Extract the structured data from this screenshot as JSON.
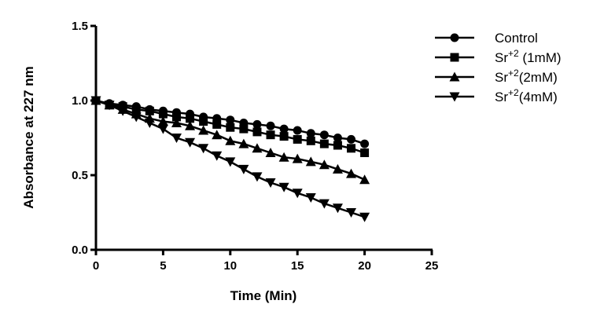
{
  "chart_data": {
    "type": "line",
    "title": "",
    "xlabel": "Time (Min)",
    "ylabel": "Absorbance at 227   nm",
    "xlim": [
      0,
      25
    ],
    "ylim": [
      0,
      1.5
    ],
    "xticks": [
      "0",
      "5",
      "10",
      "15",
      "20",
      "25"
    ],
    "yticks": [
      "0.0",
      "0.5",
      "1.0",
      "1.5"
    ],
    "grid": false,
    "legend_position": "top-right",
    "x": [
      0,
      1,
      2,
      3,
      4,
      5,
      6,
      7,
      8,
      9,
      10,
      11,
      12,
      13,
      14,
      15,
      16,
      17,
      18,
      19,
      20
    ],
    "series": [
      {
        "name": "Control",
        "base": "Control",
        "sup": "",
        "suffix": "",
        "marker": "circle",
        "values": [
          1.0,
          0.98,
          0.97,
          0.96,
          0.94,
          0.93,
          0.92,
          0.91,
          0.89,
          0.88,
          0.87,
          0.85,
          0.84,
          0.83,
          0.81,
          0.8,
          0.78,
          0.77,
          0.75,
          0.74,
          0.71
        ]
      },
      {
        "name": "Sr+2 (1mM)",
        "base": "Sr",
        "sup": "+2",
        "suffix": " (1mM)",
        "marker": "square",
        "values": [
          1.0,
          0.97,
          0.96,
          0.94,
          0.93,
          0.91,
          0.89,
          0.88,
          0.86,
          0.84,
          0.82,
          0.81,
          0.79,
          0.77,
          0.76,
          0.74,
          0.73,
          0.71,
          0.7,
          0.68,
          0.65
        ]
      },
      {
        "name": "Sr+2(2mM)",
        "base": "Sr",
        "sup": "+2",
        "suffix": "(2mM)",
        "marker": "triangle-up",
        "values": [
          1.0,
          0.97,
          0.94,
          0.91,
          0.88,
          0.86,
          0.85,
          0.83,
          0.8,
          0.77,
          0.73,
          0.71,
          0.68,
          0.65,
          0.62,
          0.61,
          0.59,
          0.57,
          0.54,
          0.51,
          0.47
        ]
      },
      {
        "name": "Sr+2(4mM)",
        "base": "Sr",
        "sup": "+2",
        "suffix": "(4mM)",
        "marker": "triangle-down",
        "values": [
          1.0,
          0.97,
          0.93,
          0.89,
          0.85,
          0.81,
          0.75,
          0.72,
          0.68,
          0.63,
          0.59,
          0.54,
          0.49,
          0.45,
          0.42,
          0.38,
          0.35,
          0.31,
          0.28,
          0.25,
          0.22
        ]
      }
    ]
  }
}
